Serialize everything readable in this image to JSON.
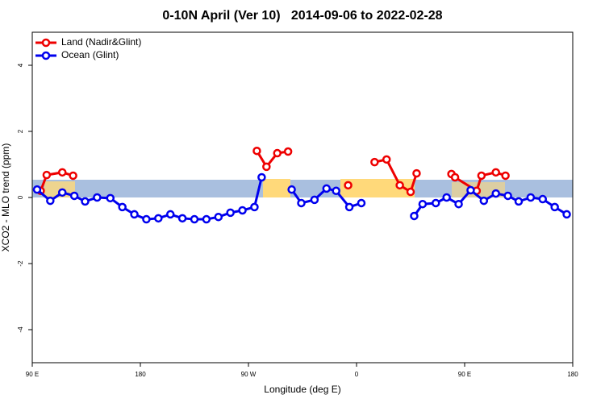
{
  "chart_data": {
    "type": "line",
    "title": "0-10N April (Ver 10)   2014-09-06 to 2022-02-28",
    "x_label": "Longitude (deg E)",
    "y_label": "XCO2 - MLO trend (ppm)",
    "xlim": [
      90,
      540
    ],
    "ylim": [
      -5,
      5
    ],
    "xticks": [
      {
        "value": 90,
        "label": "90 E"
      },
      180,
      {
        "value": 270,
        "label": "90 W"
      },
      {
        "value": 360,
        "label": "0"
      },
      {
        "value": 450,
        "label": "90 E"
      },
      {
        "value": 540,
        "label": "180"
      }
    ],
    "yticks": [
      -4,
      -2,
      0,
      2,
      4
    ],
    "legend": "topleft",
    "series": [
      {
        "name": "Land (Nadir&Glint)",
        "color": "#ee0000",
        "x": [
          97,
          102,
          115,
          124,
          200,
          277,
          285,
          294,
          303,
          330,
          353,
          365,
          375,
          385,
          396,
          405,
          410,
          425,
          439,
          442,
          460,
          464,
          476,
          484
        ],
        "values": [
          0.2,
          0.68,
          0.76,
          0.66,
          null,
          1.41,
          0.93,
          1.34,
          1.39,
          null,
          0.37,
          null,
          1.07,
          1.15,
          0.37,
          0.17,
          0.73,
          null,
          0.71,
          0.61,
          0.2,
          0.66,
          0.76,
          0.66
        ]
      },
      {
        "name": "Ocean (Glint)",
        "color": "#0000ee",
        "x": [
          94,
          105,
          115,
          125,
          134,
          144,
          155,
          165,
          175,
          185,
          195,
          205,
          215,
          225,
          235,
          245,
          255,
          265,
          275,
          281,
          293,
          306,
          314,
          325,
          335,
          343,
          354,
          364,
          386,
          408,
          415,
          426,
          435,
          445,
          455,
          466,
          476,
          486,
          495,
          505,
          515,
          525,
          535
        ],
        "values": [
          0.24,
          -0.1,
          0.15,
          0.05,
          -0.12,
          0,
          -0.02,
          -0.29,
          -0.51,
          -0.66,
          -0.63,
          -0.51,
          -0.63,
          -0.66,
          -0.66,
          -0.59,
          -0.46,
          -0.39,
          -0.29,
          0.61,
          null,
          0.24,
          -0.17,
          -0.07,
          0.27,
          0.2,
          -0.29,
          -0.17,
          null,
          -0.56,
          -0.2,
          -0.17,
          0,
          -0.2,
          0.22,
          -0.1,
          0.12,
          0.05,
          -0.12,
          0,
          -0.05,
          -0.29,
          -0.51
        ]
      }
    ]
  }
}
